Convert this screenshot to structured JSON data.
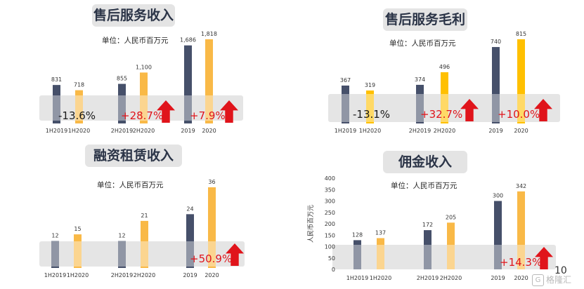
{
  "colors": {
    "dark": "#46506a",
    "orange": "#f9b947",
    "orange_bright": "#ffc000",
    "band": "#d0d0d0",
    "red": "#e0141b"
  },
  "unit_text": "单位：人民币百万元",
  "page_number": "10",
  "watermark": "格隆汇",
  "chart_data": [
    {
      "type": "bar",
      "title": "售后服务收入",
      "categories": [
        "1H2019",
        "1H2020",
        "2H2019",
        "2H2020",
        "2019",
        "2020"
      ],
      "values": [
        831,
        718,
        855,
        1100,
        1686,
        1818
      ],
      "value_labels": [
        "831",
        "718",
        "855",
        "1,100",
        "1,686",
        "1,818"
      ],
      "changes": [
        {
          "text": "-13.6%",
          "direction": "down"
        },
        {
          "text": "+28.7%",
          "direction": "up"
        },
        {
          "text": "+7.9%",
          "direction": "up"
        }
      ]
    },
    {
      "type": "bar",
      "title": "售后服务毛利",
      "categories": [
        "1H2019",
        "1H2020",
        "2H2019",
        "2H2020",
        "2019",
        "2020"
      ],
      "values": [
        367,
        319,
        374,
        496,
        740,
        815
      ],
      "value_labels": [
        "367",
        "319",
        "374",
        "496",
        "740",
        "815"
      ],
      "changes": [
        {
          "text": "-13.1%",
          "direction": "down"
        },
        {
          "text": "+32.7%",
          "direction": "up"
        },
        {
          "text": "+10.0%",
          "direction": "up"
        }
      ]
    },
    {
      "type": "bar",
      "title": "融资租赁收入",
      "categories": [
        "1H2019",
        "1H2020",
        "2H2019",
        "2H2020",
        "2019",
        "2020"
      ],
      "values": [
        12,
        15,
        12,
        21,
        24,
        36
      ],
      "value_labels": [
        "12",
        "15",
        "12",
        "21",
        "24",
        "36"
      ],
      "changes": [
        {
          "text": "+50.9%",
          "direction": "up"
        }
      ]
    },
    {
      "type": "bar",
      "title": "佣金收入",
      "categories": [
        "1H2019",
        "1H2020",
        "2H2019",
        "2H2020",
        "2019",
        "2020"
      ],
      "values": [
        128,
        137,
        172,
        205,
        300,
        342
      ],
      "value_labels": [
        "128",
        "137",
        "172",
        "205",
        "300",
        "342"
      ],
      "ylabel": "人民币百万元",
      "y_ticks": [
        "0",
        "50",
        "100",
        "150",
        "200",
        "250",
        "300",
        "350",
        "400"
      ],
      "ylim": [
        0,
        400
      ],
      "changes": [
        {
          "text": "+14.3%",
          "direction": "up"
        }
      ]
    }
  ]
}
